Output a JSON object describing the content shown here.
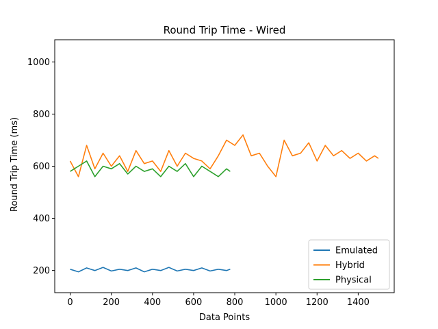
{
  "chart_data": {
    "type": "line",
    "title": "Round Trip Time - Wired",
    "xlabel": "Data Points",
    "ylabel": "Round Trip Time (ms)",
    "xlim": [
      -75,
      1575
    ],
    "ylim": [
      115,
      1085
    ],
    "xticks": [
      0,
      200,
      400,
      600,
      800,
      1000,
      1200,
      1400
    ],
    "yticks": [
      200,
      400,
      600,
      800,
      1000
    ],
    "grid": false,
    "legend_position": "lower-right",
    "series": [
      {
        "name": "Emulated",
        "color": "#1f77b4",
        "x": [
          0,
          40,
          80,
          120,
          160,
          200,
          240,
          280,
          320,
          360,
          400,
          440,
          480,
          520,
          560,
          600,
          640,
          680,
          720,
          760,
          778
        ],
        "y": [
          205,
          195,
          210,
          200,
          212,
          198,
          205,
          200,
          210,
          195,
          205,
          200,
          212,
          198,
          205,
          200,
          210,
          198,
          205,
          200,
          205
        ]
      },
      {
        "name": "Hybrid",
        "color": "#ff7f0e",
        "x": [
          0,
          40,
          80,
          120,
          160,
          200,
          240,
          280,
          320,
          360,
          400,
          440,
          480,
          520,
          560,
          600,
          640,
          680,
          720,
          760,
          800,
          840,
          880,
          920,
          960,
          1000,
          1040,
          1080,
          1120,
          1160,
          1200,
          1240,
          1280,
          1320,
          1360,
          1400,
          1440,
          1480,
          1498
        ],
        "y": [
          620,
          560,
          680,
          590,
          650,
          600,
          640,
          580,
          660,
          610,
          620,
          580,
          660,
          600,
          650,
          630,
          620,
          590,
          640,
          700,
          680,
          720,
          640,
          650,
          600,
          560,
          700,
          640,
          650,
          690,
          620,
          680,
          640,
          660,
          630,
          650,
          620,
          640,
          630
        ]
      },
      {
        "name": "Physical",
        "color": "#2ca02c",
        "x": [
          0,
          40,
          80,
          120,
          160,
          200,
          240,
          280,
          320,
          360,
          400,
          440,
          480,
          520,
          560,
          600,
          640,
          680,
          720,
          760,
          778
        ],
        "y": [
          580,
          600,
          620,
          560,
          600,
          590,
          610,
          570,
          600,
          580,
          590,
          560,
          600,
          580,
          610,
          560,
          600,
          580,
          560,
          590,
          580
        ]
      }
    ]
  }
}
